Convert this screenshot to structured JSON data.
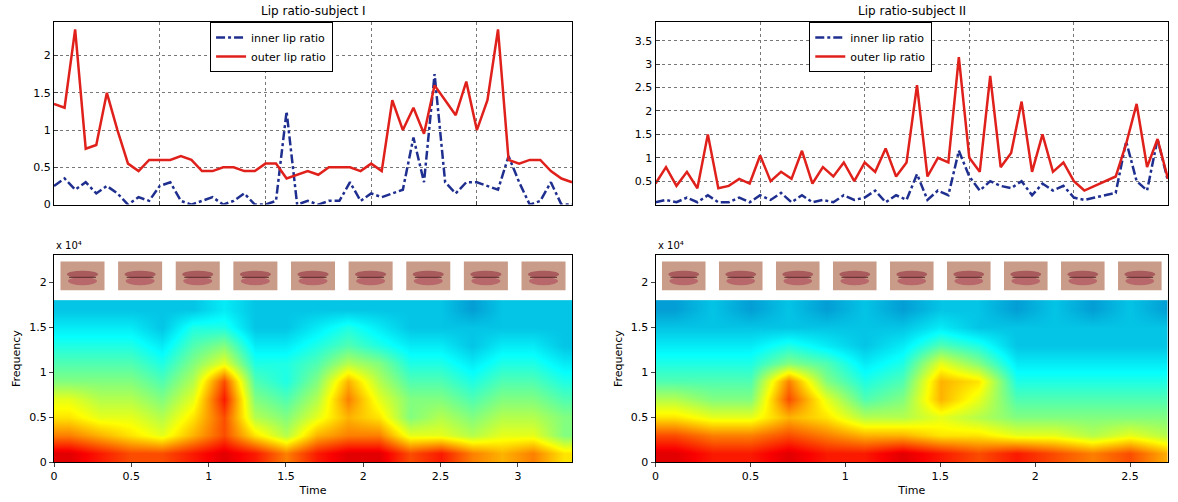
{
  "chart_data": [
    {
      "type": "line",
      "title": "Lip ratio-subject I",
      "x": [
        0,
        2,
        4,
        6,
        8,
        10,
        12,
        14,
        16,
        18,
        20,
        22,
        24,
        26,
        28,
        30,
        32,
        34,
        36,
        38,
        40,
        42,
        44,
        46,
        48,
        50,
        52,
        54,
        56,
        58,
        60,
        62,
        64,
        66,
        68,
        70,
        72,
        74,
        76,
        78,
        80,
        82,
        84,
        86,
        88,
        90,
        92,
        94,
        96,
        98
      ],
      "xlim": [
        0,
        98
      ],
      "xticks": [
        20,
        40,
        60,
        80
      ],
      "ylim": [
        0,
        2.45
      ],
      "yticks": [
        0,
        0.5,
        1,
        1.5,
        2
      ],
      "grid": true,
      "legend": "top",
      "tick_labels": "y",
      "series": [
        {
          "name": "inner lip ratio",
          "color": "#1f2f8f",
          "line_style": "dashdot",
          "values": [
            0.25,
            0.35,
            0.2,
            0.3,
            0.15,
            0.25,
            0.15,
            0.0,
            0.1,
            0.05,
            0.25,
            0.3,
            0.05,
            0.0,
            0.05,
            0.1,
            0.0,
            0.05,
            0.15,
            0.0,
            0.0,
            0.05,
            1.25,
            0.0,
            0.05,
            0.0,
            0.05,
            0.05,
            0.3,
            0.05,
            0.15,
            0.1,
            0.15,
            0.2,
            0.9,
            0.3,
            1.75,
            0.3,
            0.15,
            0.3,
            0.3,
            0.25,
            0.2,
            0.65,
            0.3,
            0.0,
            0.05,
            0.3,
            0.0,
            0.0
          ]
        },
        {
          "name": "outer lip ratio",
          "color": "#e0201b",
          "line_style": "solid",
          "values": [
            1.35,
            1.3,
            2.35,
            0.75,
            0.8,
            1.5,
            1.0,
            0.55,
            0.45,
            0.6,
            0.6,
            0.6,
            0.65,
            0.6,
            0.45,
            0.45,
            0.5,
            0.5,
            0.45,
            0.45,
            0.55,
            0.55,
            0.35,
            0.4,
            0.45,
            0.4,
            0.5,
            0.5,
            0.5,
            0.45,
            0.55,
            0.45,
            1.4,
            1.0,
            1.3,
            0.95,
            1.6,
            1.4,
            1.2,
            1.65,
            1.0,
            1.4,
            2.35,
            0.6,
            0.55,
            0.6,
            0.6,
            0.45,
            0.35,
            0.3
          ]
        }
      ]
    },
    {
      "type": "line",
      "title": "Lip ratio-subject II",
      "x": [
        0,
        2,
        4,
        6,
        8,
        10,
        12,
        14,
        16,
        18,
        20,
        22,
        24,
        26,
        28,
        30,
        32,
        34,
        36,
        38,
        40,
        42,
        44,
        46,
        48,
        50,
        52,
        54,
        56,
        58,
        60,
        62,
        64,
        66,
        68,
        70,
        72,
        74,
        76,
        78,
        80,
        82,
        84,
        86,
        88,
        90,
        92,
        94,
        96,
        98
      ],
      "xlim": [
        0,
        98
      ],
      "xticks": [
        20,
        40,
        60,
        80
      ],
      "ylim": [
        0,
        3.9
      ],
      "yticks": [
        0.5,
        1,
        1.5,
        2,
        2.5,
        3,
        3.5
      ],
      "grid": true,
      "legend": "top",
      "tick_labels": "y",
      "series": [
        {
          "name": "inner lip ratio",
          "color": "#1f2f8f",
          "line_style": "dashdot",
          "values": [
            0.05,
            0.1,
            0.05,
            0.15,
            0.05,
            0.2,
            0.05,
            0.05,
            0.15,
            0.05,
            0.2,
            0.1,
            0.25,
            0.05,
            0.2,
            0.05,
            0.1,
            0.05,
            0.2,
            0.1,
            0.15,
            0.3,
            0.05,
            0.2,
            0.1,
            0.65,
            0.1,
            0.3,
            0.2,
            1.15,
            0.6,
            0.3,
            0.5,
            0.4,
            0.35,
            0.5,
            0.2,
            0.45,
            0.3,
            0.4,
            0.15,
            0.1,
            0.15,
            0.2,
            0.25,
            1.35,
            0.5,
            0.3,
            1.4,
            0.5
          ]
        },
        {
          "name": "outer lip ratio",
          "color": "#e0201b",
          "line_style": "solid",
          "values": [
            0.45,
            0.8,
            0.4,
            0.7,
            0.35,
            1.5,
            0.35,
            0.4,
            0.55,
            0.45,
            1.05,
            0.5,
            0.7,
            0.55,
            1.15,
            0.45,
            0.8,
            0.6,
            0.9,
            0.5,
            0.9,
            0.7,
            1.2,
            0.6,
            0.9,
            2.55,
            0.6,
            1.0,
            0.9,
            3.15,
            1.0,
            0.7,
            2.75,
            0.8,
            1.1,
            2.2,
            0.7,
            1.5,
            0.7,
            0.9,
            0.5,
            0.3,
            0.4,
            0.5,
            0.6,
            1.3,
            2.15,
            0.8,
            1.4,
            0.55
          ]
        }
      ]
    },
    {
      "type": "heatmap",
      "x_label": "Time",
      "y_label": "Frequency",
      "annotations": [
        "x 10⁴"
      ],
      "xlim": [
        0,
        3.35
      ],
      "xticks": [
        0,
        0.5,
        1,
        1.5,
        2,
        2.5,
        3
      ],
      "ylim": [
        0,
        2.3
      ],
      "yticks": [
        0,
        0.5,
        1,
        1.5,
        2
      ],
      "grid": false,
      "zlim": [
        0,
        1
      ],
      "x": [
        0.1,
        0.3,
        0.5,
        0.7,
        0.9,
        1.1,
        1.3,
        1.5,
        1.7,
        1.9,
        2.1,
        2.3,
        2.5,
        2.7,
        2.9,
        3.1,
        3.3
      ],
      "y": [
        0.1,
        0.3,
        0.5,
        0.7,
        0.9,
        1.1,
        1.3,
        1.5,
        1.7
      ],
      "z": [
        [
          0.9,
          0.85,
          0.8,
          0.8,
          0.85,
          0.9,
          0.85,
          0.75,
          0.85,
          0.9,
          0.9,
          0.8,
          0.85,
          0.75,
          0.7,
          0.75,
          0.65
        ],
        [
          0.75,
          0.7,
          0.65,
          0.6,
          0.7,
          0.8,
          0.65,
          0.55,
          0.7,
          0.75,
          0.75,
          0.6,
          0.6,
          0.55,
          0.6,
          0.6,
          0.5
        ],
        [
          0.65,
          0.6,
          0.6,
          0.55,
          0.65,
          0.8,
          0.55,
          0.5,
          0.6,
          0.7,
          0.65,
          0.5,
          0.55,
          0.5,
          0.55,
          0.55,
          0.5
        ],
        [
          0.6,
          0.55,
          0.55,
          0.5,
          0.6,
          0.85,
          0.5,
          0.45,
          0.55,
          0.75,
          0.6,
          0.5,
          0.5,
          0.45,
          0.5,
          0.5,
          0.45
        ],
        [
          0.5,
          0.5,
          0.5,
          0.45,
          0.55,
          0.8,
          0.45,
          0.4,
          0.5,
          0.7,
          0.55,
          0.45,
          0.45,
          0.4,
          0.45,
          0.45,
          0.4
        ],
        [
          0.45,
          0.45,
          0.45,
          0.4,
          0.5,
          0.6,
          0.4,
          0.4,
          0.45,
          0.55,
          0.5,
          0.4,
          0.4,
          0.35,
          0.4,
          0.4,
          0.35
        ],
        [
          0.4,
          0.4,
          0.4,
          0.35,
          0.45,
          0.5,
          0.35,
          0.35,
          0.4,
          0.45,
          0.4,
          0.35,
          0.35,
          0.3,
          0.35,
          0.35,
          0.3
        ],
        [
          0.35,
          0.35,
          0.35,
          0.3,
          0.4,
          0.4,
          0.3,
          0.3,
          0.35,
          0.4,
          0.35,
          0.3,
          0.3,
          0.3,
          0.3,
          0.3,
          0.3
        ],
        [
          0.3,
          0.3,
          0.3,
          0.3,
          0.3,
          0.35,
          0.3,
          0.3,
          0.3,
          0.3,
          0.3,
          0.3,
          0.3,
          0.25,
          0.3,
          0.3,
          0.3
        ]
      ]
    },
    {
      "type": "heatmap",
      "x_label": "Time",
      "y_label": "Frequency",
      "annotations": [
        "x 10⁴"
      ],
      "xlim": [
        0,
        2.7
      ],
      "xticks": [
        0,
        0.5,
        1,
        1.5,
        2,
        2.5
      ],
      "ylim": [
        0,
        2.3
      ],
      "yticks": [
        0,
        0.5,
        1,
        1.5,
        2
      ],
      "grid": false,
      "zlim": [
        0,
        1
      ],
      "x": [
        0.1,
        0.3,
        0.5,
        0.7,
        0.9,
        1.1,
        1.3,
        1.5,
        1.7,
        1.9,
        2.1,
        2.3,
        2.5,
        2.7
      ],
      "y": [
        0.1,
        0.3,
        0.5,
        0.7,
        0.9,
        1.1,
        1.3,
        1.5,
        1.7
      ],
      "z": [
        [
          0.9,
          0.85,
          0.85,
          0.9,
          0.85,
          0.85,
          0.9,
          0.85,
          0.8,
          0.85,
          0.8,
          0.75,
          0.8,
          0.7
        ],
        [
          0.8,
          0.75,
          0.75,
          0.8,
          0.75,
          0.7,
          0.7,
          0.65,
          0.65,
          0.6,
          0.6,
          0.55,
          0.6,
          0.55
        ],
        [
          0.65,
          0.6,
          0.6,
          0.7,
          0.65,
          0.55,
          0.55,
          0.6,
          0.55,
          0.5,
          0.5,
          0.5,
          0.5,
          0.5
        ],
        [
          0.55,
          0.5,
          0.5,
          0.8,
          0.6,
          0.45,
          0.5,
          0.7,
          0.6,
          0.45,
          0.45,
          0.45,
          0.45,
          0.45
        ],
        [
          0.45,
          0.45,
          0.45,
          0.75,
          0.5,
          0.4,
          0.45,
          0.7,
          0.65,
          0.4,
          0.4,
          0.4,
          0.4,
          0.4
        ],
        [
          0.4,
          0.4,
          0.4,
          0.5,
          0.45,
          0.35,
          0.4,
          0.6,
          0.5,
          0.35,
          0.35,
          0.35,
          0.35,
          0.35
        ],
        [
          0.35,
          0.35,
          0.35,
          0.4,
          0.35,
          0.3,
          0.35,
          0.45,
          0.4,
          0.3,
          0.3,
          0.3,
          0.3,
          0.3
        ],
        [
          0.3,
          0.3,
          0.3,
          0.3,
          0.3,
          0.3,
          0.3,
          0.35,
          0.3,
          0.3,
          0.3,
          0.3,
          0.3,
          0.3
        ],
        [
          0.25,
          0.3,
          0.25,
          0.3,
          0.25,
          0.3,
          0.25,
          0.3,
          0.3,
          0.25,
          0.3,
          0.25,
          0.3,
          0.25
        ]
      ]
    }
  ]
}
